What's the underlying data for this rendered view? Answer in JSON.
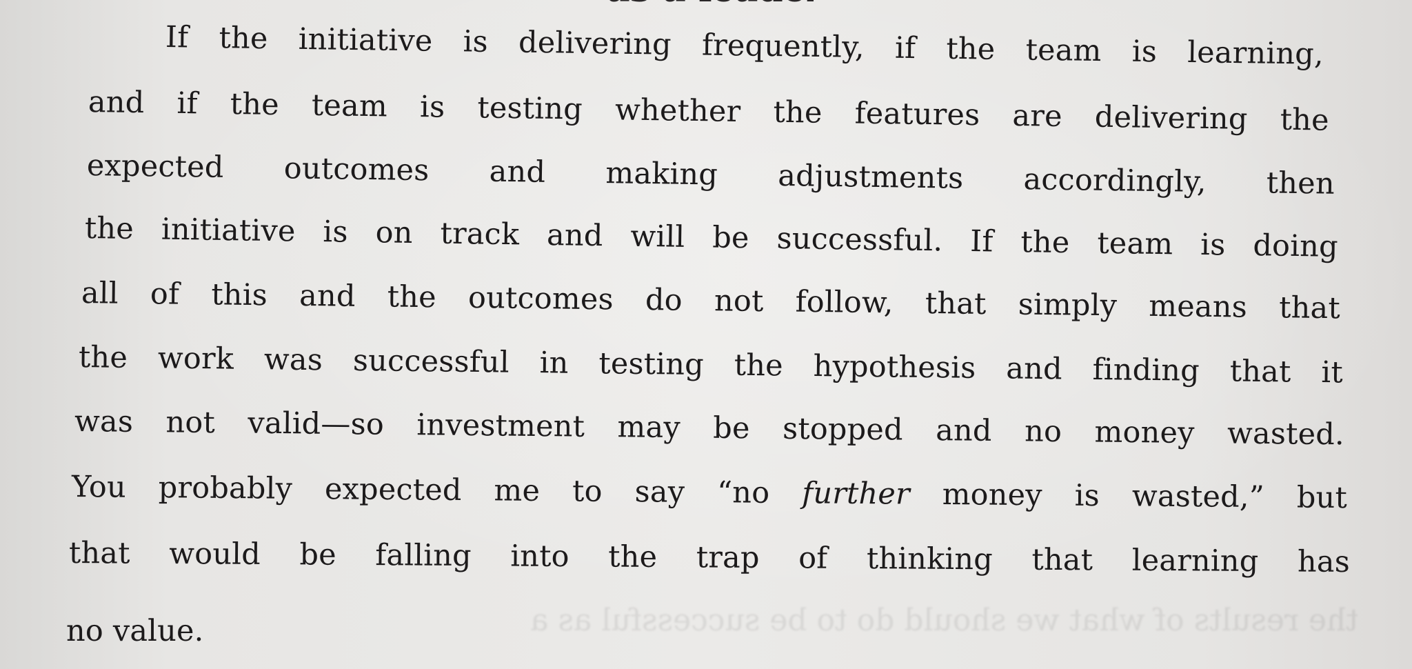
{
  "heading_fragment": "as a leader.",
  "paragraph": {
    "lines": [
      "If the initiative is delivering frequently, if the team is learning,",
      "and if the team is testing whether the features are delivering the",
      "expected outcomes and making adjustments accordingly, then",
      "the initiative is on track and will be successful. If the team is doing",
      "all of this and the outcomes do not follow, that simply means that",
      "the work was successful in testing the hypothesis and finding that it",
      "was not valid—so investment may be stopped and no money wasted.",
      "You probably expected me to say “no ",
      "that would be falling into the trap of thinking that learning has",
      "no value."
    ],
    "emphasis_word": "further",
    "line8_end": " money is wasted,” but"
  },
  "bleed_through": "the results of what we should do to be successful as a"
}
